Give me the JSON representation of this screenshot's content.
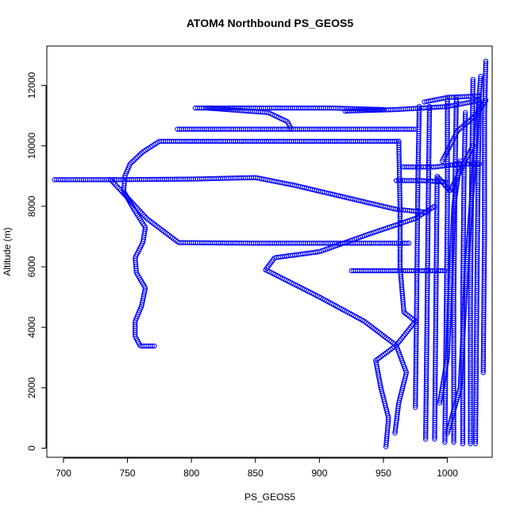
{
  "chart_data": {
    "type": "scatter",
    "title": "ATOM4 Northbound PS_GEOS5",
    "xlabel": "PS_GEOS5",
    "ylabel": "Altitude (m)",
    "xlim": [
      687,
      1035
    ],
    "ylim": [
      -300,
      13300
    ],
    "x_ticks": [
      700,
      750,
      800,
      850,
      900,
      950,
      1000
    ],
    "y_ticks": [
      0,
      2000,
      4000,
      6000,
      8000,
      10000,
      12000
    ],
    "marker": "open-circle",
    "color": "#0000ff",
    "grid": false,
    "legend": "none",
    "tracks": [
      [
        [
          771,
          3380
        ],
        [
          760,
          3380
        ],
        [
          756,
          3700
        ],
        [
          756,
          4200
        ],
        [
          761,
          4700
        ],
        [
          764,
          5300
        ],
        [
          757,
          5800
        ],
        [
          756,
          6300
        ],
        [
          762,
          6800
        ],
        [
          764,
          7300
        ],
        [
          755,
          7900
        ],
        [
          747,
          8500
        ],
        [
          748,
          9000
        ],
        [
          752,
          9400
        ],
        [
          762,
          9800
        ],
        [
          775,
          10150
        ],
        [
          830,
          10150
        ],
        [
          880,
          10150
        ],
        [
          930,
          10150
        ],
        [
          962,
          10150
        ]
      ],
      [
        [
          962,
          10150
        ],
        [
          963,
          8000
        ],
        [
          963,
          6000
        ],
        [
          966,
          4500
        ],
        [
          975,
          4200
        ]
      ],
      [
        [
          693,
          8880
        ],
        [
          740,
          8880
        ]
      ],
      [
        [
          740,
          8880
        ],
        [
          800,
          8900
        ],
        [
          850,
          8950
        ],
        [
          880,
          8700
        ],
        [
          920,
          8300
        ],
        [
          960,
          7900
        ],
        [
          985,
          7800
        ]
      ],
      [
        [
          737,
          8880
        ],
        [
          765,
          7600
        ],
        [
          790,
          6800
        ],
        [
          850,
          6780
        ],
        [
          900,
          6780
        ],
        [
          950,
          6780
        ],
        [
          970,
          6780
        ]
      ],
      [
        [
          789,
          10550
        ],
        [
          850,
          10550
        ],
        [
          900,
          10550
        ],
        [
          950,
          10550
        ],
        [
          975,
          10550
        ]
      ],
      [
        [
          803,
          11250
        ],
        [
          860,
          11250
        ],
        [
          880,
          11250
        ],
        [
          910,
          11250
        ],
        [
          950,
          11200
        ]
      ],
      [
        [
          812,
          11250
        ],
        [
          860,
          11100
        ],
        [
          875,
          10800
        ],
        [
          878,
          10550
        ]
      ],
      [
        [
          858,
          5900
        ],
        [
          865,
          6300
        ],
        [
          900,
          6500
        ],
        [
          940,
          7100
        ],
        [
          975,
          7600
        ],
        [
          990,
          8000
        ]
      ],
      [
        [
          858,
          5900
        ],
        [
          900,
          5000
        ],
        [
          935,
          4200
        ],
        [
          960,
          3400
        ],
        [
          968,
          2500
        ],
        [
          962,
          1500
        ],
        [
          959,
          500
        ]
      ],
      [
        [
          952,
          50
        ],
        [
          954,
          1000
        ],
        [
          948,
          2000
        ],
        [
          944,
          2900
        ],
        [
          960,
          3400
        ],
        [
          975,
          4200
        ]
      ],
      [
        [
          925,
          5870
        ],
        [
          960,
          5870
        ],
        [
          985,
          5870
        ],
        [
          998,
          5870
        ]
      ],
      [
        [
          960,
          8850
        ],
        [
          980,
          8850
        ],
        [
          1000,
          8800
        ]
      ],
      [
        [
          920,
          11150
        ],
        [
          960,
          11200
        ],
        [
          1000,
          11300
        ],
        [
          1025,
          11500
        ]
      ],
      [
        [
          965,
          9300
        ],
        [
          990,
          9300
        ],
        [
          1010,
          9400
        ],
        [
          1025,
          9400
        ]
      ],
      [
        [
          982,
          11450
        ],
        [
          1000,
          11600
        ],
        [
          1025,
          11650
        ]
      ],
      [
        [
          975,
          1350
        ],
        [
          976,
          5000
        ],
        [
          977,
          9000
        ],
        [
          978,
          11300
        ]
      ],
      [
        [
          983,
          300
        ],
        [
          984,
          4000
        ],
        [
          985,
          8000
        ],
        [
          986,
          11300
        ]
      ],
      [
        [
          998,
          200
        ],
        [
          999,
          4000
        ],
        [
          1000,
          8000
        ],
        [
          1000,
          11600
        ]
      ],
      [
        [
          1005,
          200
        ],
        [
          1005,
          5000
        ],
        [
          1006,
          9000
        ],
        [
          1007,
          11600
        ]
      ],
      [
        [
          1012,
          150
        ],
        [
          1012,
          5000
        ],
        [
          1013,
          9000
        ],
        [
          1014,
          11100
        ]
      ],
      [
        [
          1018,
          150
        ],
        [
          1018,
          5000
        ],
        [
          1019,
          9000
        ],
        [
          1020,
          12200
        ]
      ],
      [
        [
          1022,
          150
        ],
        [
          1023,
          5000
        ],
        [
          1024,
          9000
        ],
        [
          1025,
          11500
        ]
      ],
      [
        [
          1028,
          2500
        ],
        [
          1029,
          7000
        ],
        [
          1029,
          11000
        ],
        [
          1030,
          12800
        ]
      ],
      [
        [
          994,
          1500
        ],
        [
          1000,
          3000
        ],
        [
          1005,
          8000
        ],
        [
          1010,
          9500
        ]
      ],
      [
        [
          1000,
          500
        ],
        [
          1010,
          2000
        ],
        [
          1015,
          6000
        ],
        [
          1026,
          12300
        ]
      ],
      [
        [
          990,
          300
        ],
        [
          992,
          9000
        ],
        [
          1002,
          8500
        ],
        [
          1020,
          10000
        ]
      ],
      [
        [
          996,
          9500
        ],
        [
          1008,
          10500
        ],
        [
          1022,
          11000
        ],
        [
          1030,
          11500
        ]
      ]
    ]
  }
}
